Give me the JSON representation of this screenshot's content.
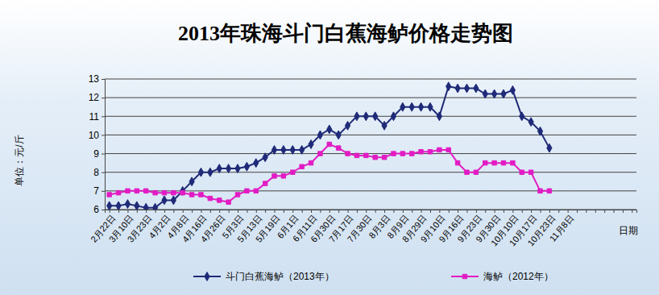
{
  "chart_data": {
    "type": "line",
    "title": "2013年珠海斗门白蕉海鲈价格走势图",
    "y_label": "单位：元/斤",
    "x_label": "日期",
    "categories": [
      "2月22日",
      null,
      "3月10日",
      null,
      "3月23日",
      null,
      "4月2日",
      null,
      "4月8日",
      null,
      "4月16日",
      null,
      "4月26日",
      null,
      "5月3日",
      null,
      "5月13日",
      null,
      "5月19日",
      null,
      "6月1日",
      null,
      "6月11日",
      null,
      "6月30日",
      null,
      "7月17日",
      null,
      "7月30日",
      null,
      "8月3日",
      null,
      "8月9日",
      null,
      "8月29日",
      null,
      "9月10日",
      null,
      "9月16日",
      null,
      "9月23日",
      null,
      "9月30日",
      null,
      "10月10日",
      null,
      "10月17日",
      null,
      "10月23日",
      null,
      "11月8日",
      null,
      null,
      null,
      null,
      null,
      null,
      null
    ],
    "series": [
      {
        "name": "斗门白蕉海鲈（2013年）",
        "color": "#1f2a78",
        "marker": "diamond",
        "values": [
          6.2,
          6.2,
          6.3,
          6.2,
          6.1,
          6.1,
          6.5,
          6.5,
          7.0,
          7.5,
          8.0,
          8.0,
          8.2,
          8.2,
          8.2,
          8.3,
          8.5,
          8.8,
          9.2,
          9.2,
          9.2,
          9.2,
          9.5,
          10.0,
          10.3,
          10.0,
          10.5,
          11.0,
          11.0,
          11.0,
          10.5,
          11.0,
          11.5,
          11.5,
          11.5,
          11.5,
          11.0,
          12.6,
          12.5,
          12.5,
          12.5,
          12.2,
          12.2,
          12.2,
          12.4,
          11.0,
          10.7,
          10.2,
          9.3,
          null,
          null,
          null,
          null,
          null,
          null,
          null,
          null,
          null
        ]
      },
      {
        "name": "海鲈（2012年）",
        "color": "#e21cc4",
        "marker": "square",
        "values": [
          6.8,
          6.9,
          7.0,
          7.0,
          7.0,
          6.9,
          6.9,
          6.9,
          6.9,
          6.8,
          6.8,
          6.6,
          6.5,
          6.4,
          6.8,
          7.0,
          7.0,
          7.4,
          7.8,
          7.8,
          8.0,
          8.3,
          8.5,
          9.0,
          9.5,
          9.3,
          9.0,
          8.9,
          8.9,
          8.8,
          8.8,
          9.0,
          9.0,
          9.0,
          9.1,
          9.1,
          9.2,
          9.2,
          8.5,
          8.0,
          8.0,
          8.5,
          8.5,
          8.5,
          8.5,
          8.0,
          8.0,
          7.0,
          7.0,
          null,
          null,
          null,
          null,
          null,
          null,
          null,
          null,
          null
        ]
      }
    ],
    "ylim": [
      6,
      13
    ],
    "yticks": [
      6,
      7,
      8,
      9,
      10,
      11,
      12,
      13
    ],
    "grid": true,
    "legend": "bottom"
  }
}
